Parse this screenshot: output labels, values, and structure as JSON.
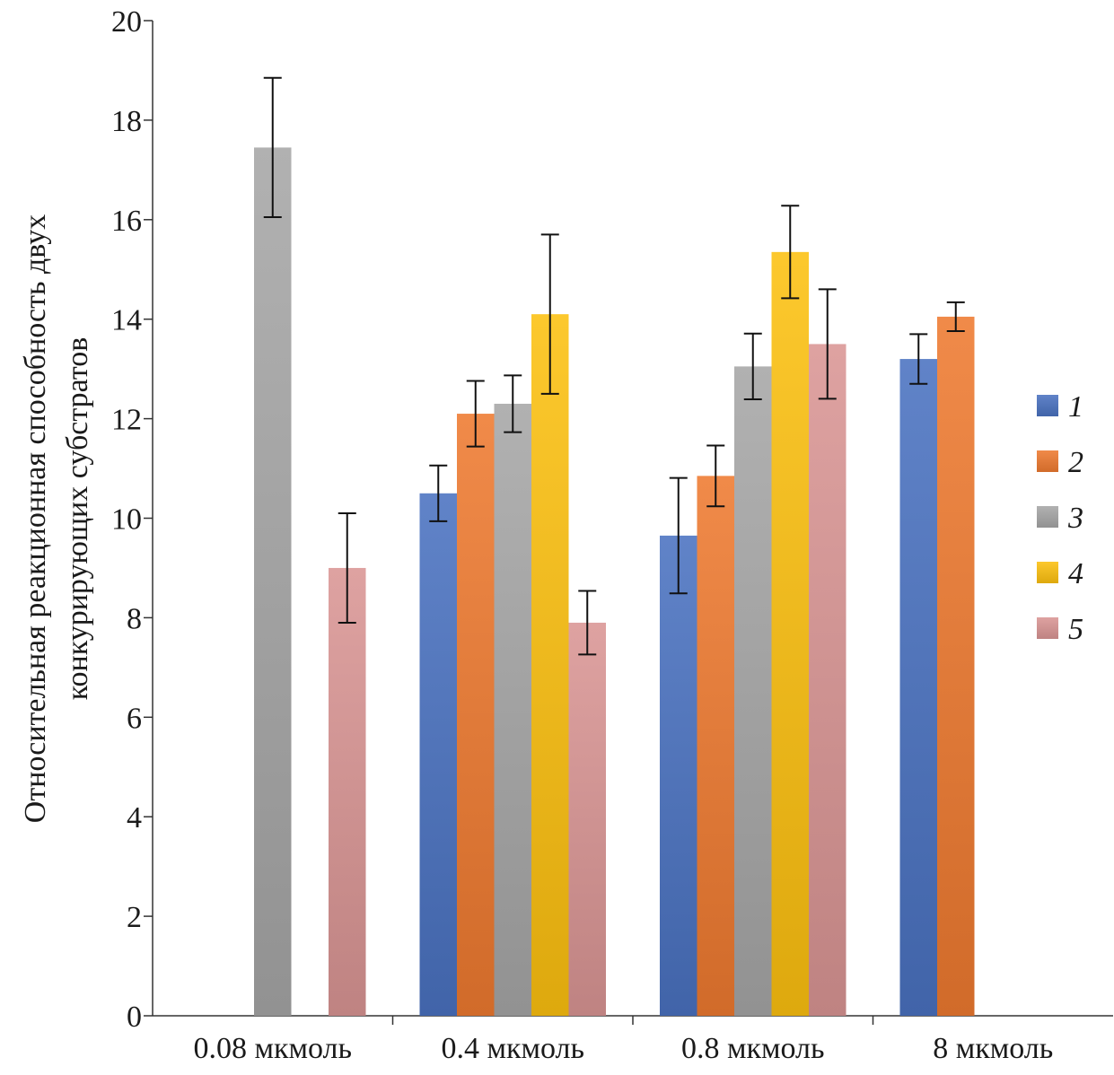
{
  "chart_data": {
    "type": "bar",
    "title": "",
    "xlabel": "",
    "ylabel_lines": [
      "Относительная реакционная способность двух",
      "конкурирующих субстратов"
    ],
    "ylim": [
      0,
      20
    ],
    "yticks": [
      0,
      2,
      4,
      6,
      8,
      10,
      12,
      14,
      16,
      18,
      20
    ],
    "grid": false,
    "legend_placement": "right",
    "categories": [
      "0.08 мкмоль",
      "0.4 мкмоль",
      "0.8 мкмоль",
      "8 мкмоль"
    ],
    "series": [
      {
        "name": "1",
        "color": "#4a72c0",
        "values": [
          null,
          10.5,
          9.65,
          13.2
        ],
        "errors": [
          null,
          0.56,
          1.16,
          0.5
        ]
      },
      {
        "name": "2",
        "color": "#ee7a30",
        "values": [
          null,
          12.1,
          10.85,
          14.05
        ],
        "errors": [
          null,
          0.66,
          0.61,
          0.29
        ]
      },
      {
        "name": "3",
        "color": "#a6a6a6",
        "values": [
          17.45,
          12.3,
          13.05,
          null
        ],
        "errors": [
          1.4,
          0.57,
          0.66,
          null
        ]
      },
      {
        "name": "4",
        "color": "#fcc010",
        "values": [
          null,
          14.1,
          15.35,
          null
        ],
        "errors": [
          null,
          1.6,
          0.93,
          null
        ]
      },
      {
        "name": "5",
        "color": "#d99594",
        "values": [
          9.0,
          7.9,
          13.5,
          null
        ],
        "errors": [
          1.1,
          0.64,
          1.1,
          null
        ]
      }
    ]
  }
}
